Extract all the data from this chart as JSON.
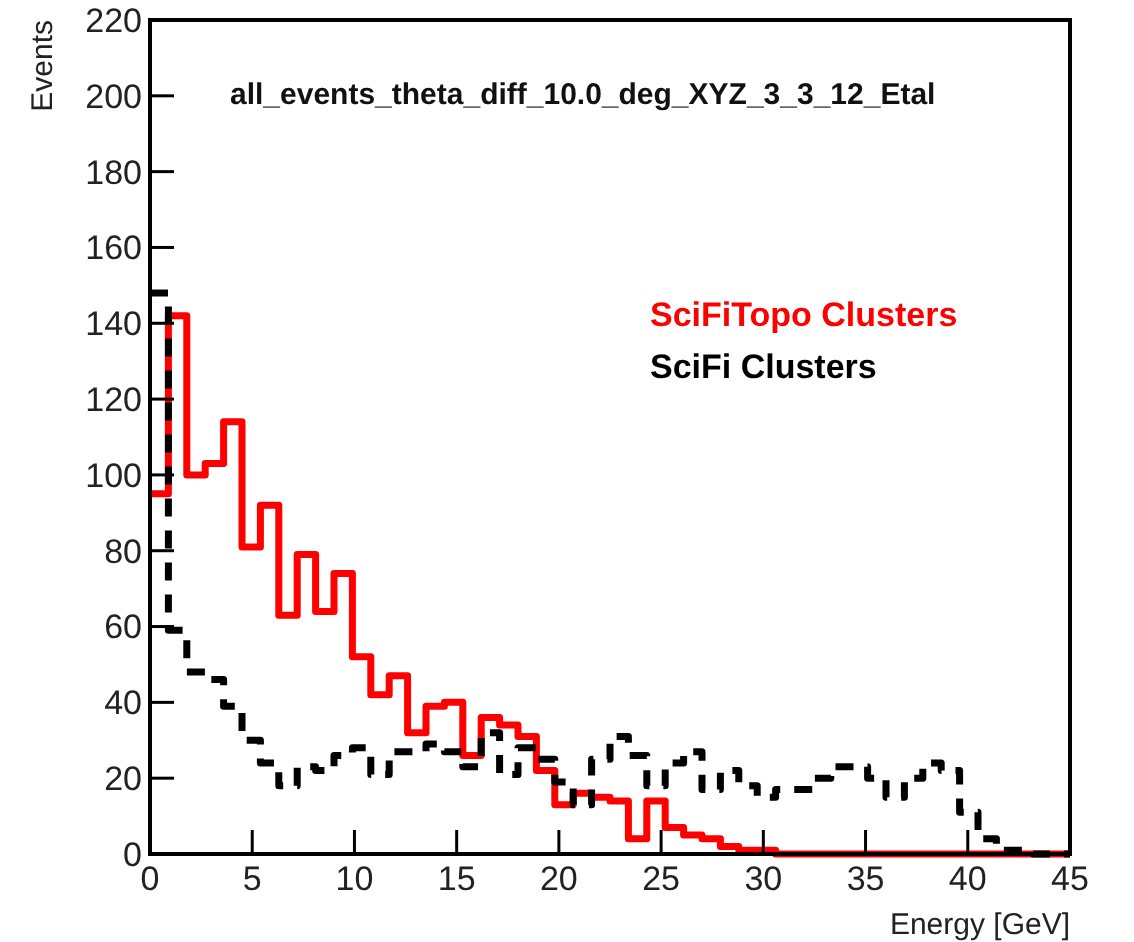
{
  "chart_data": {
    "type": "histogram",
    "title": "all_events_theta_diff_10.0_deg_XYZ_3_3_12_Etal",
    "xlabel": "Energy [GeV]",
    "ylabel": "Events",
    "bins": [
      0,
      0.9,
      1.8,
      2.7,
      3.6,
      4.5,
      5.4,
      6.3,
      7.2,
      8.1,
      9,
      9.9,
      10.8,
      11.7,
      12.6,
      13.5,
      14.4,
      15.3,
      16.2,
      17.1,
      18,
      18.9,
      19.8,
      20.7,
      21.6,
      22.5,
      23.4,
      24.3,
      25.2,
      26.1,
      27,
      27.9,
      28.8,
      29.7,
      30.6,
      31.5,
      32.4,
      33.3,
      34.2,
      35.1,
      36,
      36.9,
      37.8,
      38.7,
      39.6,
      40.5,
      41.4,
      42.3,
      43.2,
      44.1,
      45
    ],
    "series": [
      {
        "name": "SciFiTopo Clusters",
        "color": "#ff0000",
        "line_style": "solid",
        "values": [
          95,
          142,
          100,
          103,
          114,
          81,
          92,
          63,
          79,
          64,
          74,
          52,
          42,
          47,
          32,
          39,
          40,
          26,
          36,
          34,
          31,
          22,
          13,
          16,
          15,
          14,
          4,
          14,
          7,
          5,
          4,
          2,
          1,
          1,
          0,
          0,
          0,
          0,
          0,
          0,
          0,
          0,
          0,
          0,
          0,
          0,
          0,
          0,
          0,
          0
        ]
      },
      {
        "name": "SciFi Clusters",
        "color": "#000000",
        "line_style": "dashed",
        "values": [
          148,
          59,
          48,
          46,
          39,
          30,
          24,
          18,
          23,
          22,
          26,
          28,
          21,
          27,
          27,
          29,
          27,
          23,
          32,
          21,
          28,
          25,
          19,
          13,
          25,
          31,
          26,
          18,
          24,
          27,
          17,
          22,
          18,
          15,
          17,
          17,
          20,
          23,
          23,
          20,
          15,
          20,
          24,
          22,
          11,
          4,
          1,
          1,
          0,
          0
        ]
      }
    ],
    "xlim": [
      0,
      45
    ],
    "xticks": [
      0,
      5,
      10,
      15,
      20,
      25,
      30,
      35,
      40,
      45
    ],
    "ylim": [
      0,
      220
    ],
    "yticks": [
      0,
      20,
      40,
      60,
      80,
      100,
      120,
      140,
      160,
      180,
      200,
      220
    ],
    "legend": "top right"
  }
}
